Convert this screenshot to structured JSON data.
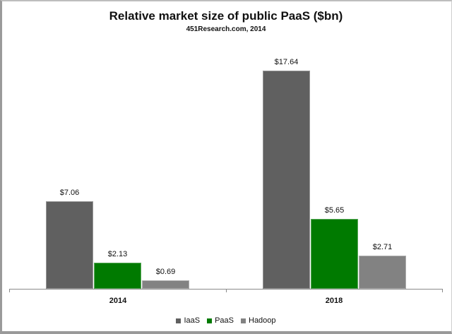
{
  "chart_data": {
    "type": "bar",
    "title": "Relative market size of public PaaS ($bn)",
    "subtitle": "451Research.com, 2014",
    "categories": [
      "2014",
      "2018"
    ],
    "series": [
      {
        "name": "IaaS",
        "color": "#606060",
        "values": [
          7.06,
          17.64
        ],
        "labels": [
          "$7.06",
          "$17.64"
        ]
      },
      {
        "name": "PaaS",
        "color": "#007a00",
        "values": [
          2.13,
          5.65
        ],
        "labels": [
          "$2.13",
          "$5.65"
        ]
      },
      {
        "name": "Hadoop",
        "color": "#828282",
        "values": [
          0.69,
          2.71
        ],
        "labels": [
          "$0.69",
          "$2.71"
        ]
      }
    ],
    "xlabel": "",
    "ylabel": "",
    "ylim": [
      0,
      18
    ],
    "grid": false,
    "legend_position": "bottom",
    "data_labels": true
  }
}
